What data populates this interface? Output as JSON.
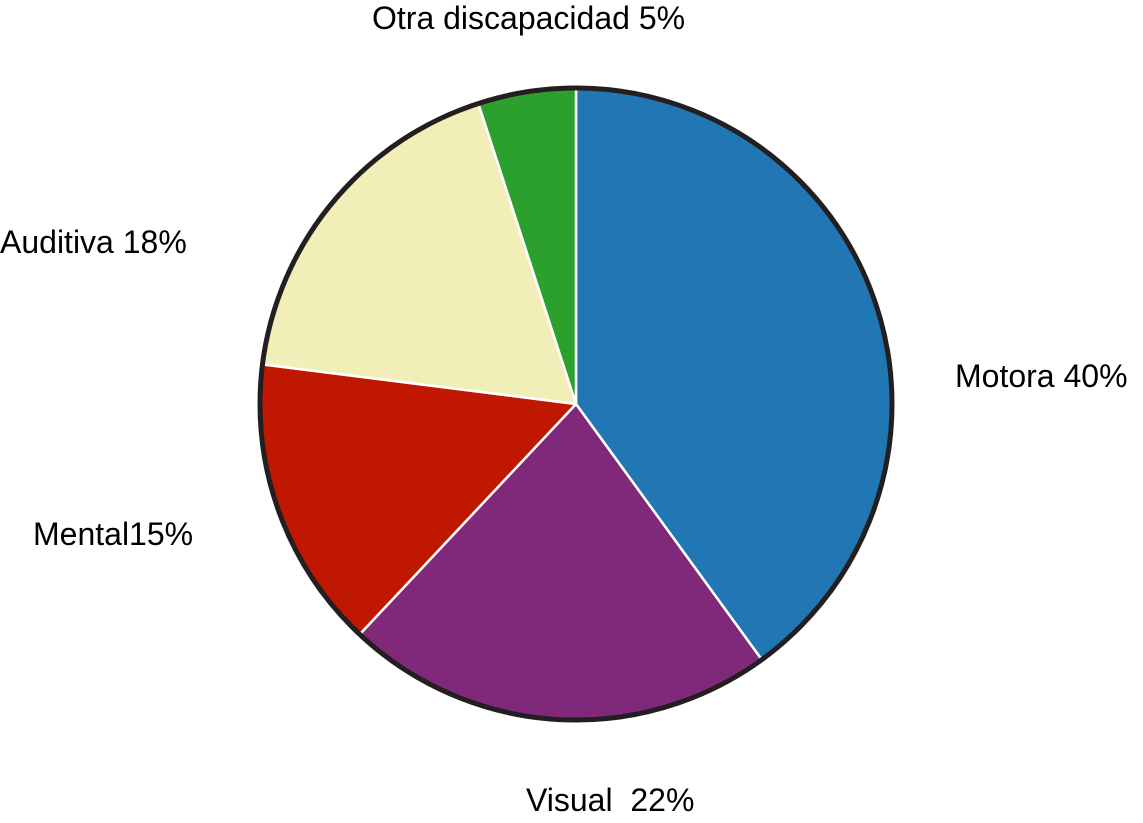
{
  "chart_data": {
    "type": "pie",
    "title": "",
    "legend": "none",
    "start_angle_deg": 0,
    "direction": "clockwise",
    "slices": [
      {
        "name": "Motora",
        "value": 40,
        "color": "#2177b3",
        "label": "Motora 40%"
      },
      {
        "name": "Visual",
        "value": 22,
        "color": "#80297b",
        "label": "Visual  22%"
      },
      {
        "name": "Mental",
        "value": 15,
        "color": "#c01800",
        "label": "Mental15%"
      },
      {
        "name": "Auditiva",
        "value": 18,
        "color": "#f2eeb8",
        "label": "Auditiva 18%"
      },
      {
        "name": "Otra discapacidad",
        "value": 5,
        "color": "#2ca02c",
        "label": "Otra discapacidad 5%"
      }
    ],
    "outline_color": "#231f20",
    "separator_color": "#ffffff"
  }
}
